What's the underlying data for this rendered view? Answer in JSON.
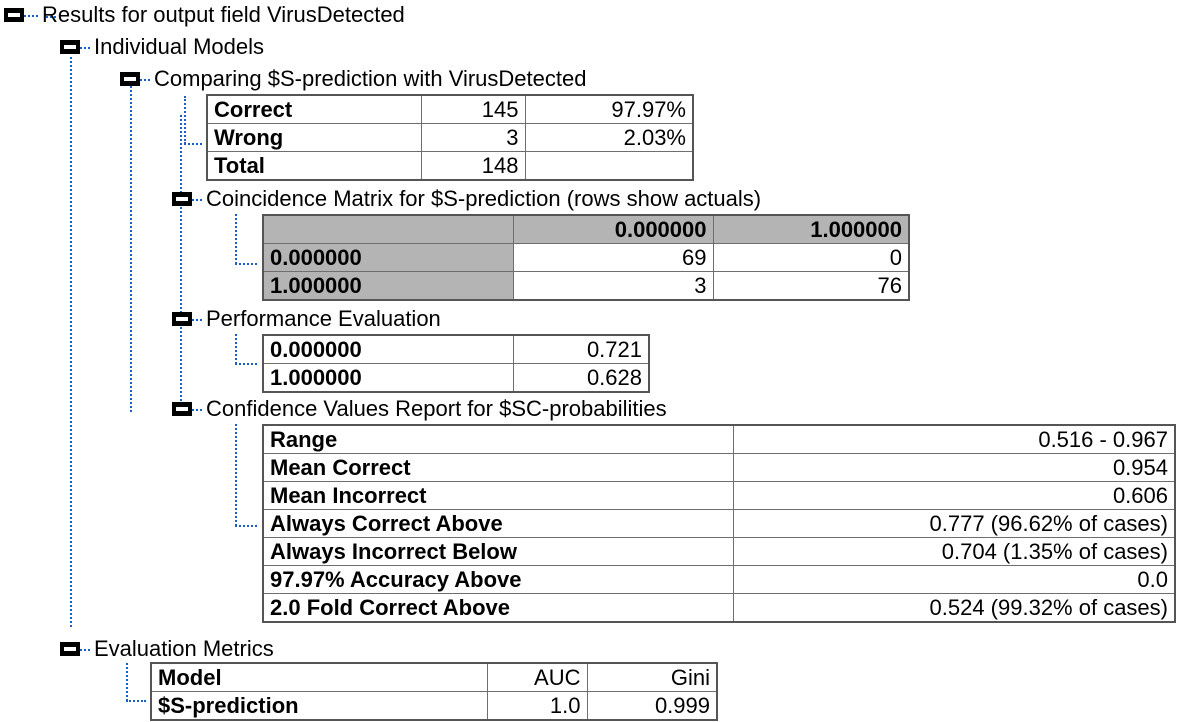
{
  "root": {
    "label": "Results for output field VirusDetected"
  },
  "individual_models": {
    "label": "Individual Models"
  },
  "comparing": {
    "label": "Comparing $S-prediction with VirusDetected",
    "rows": [
      {
        "name": "Correct",
        "count": "145",
        "pct": "97.97%"
      },
      {
        "name": "Wrong",
        "count": "3",
        "pct": "2.03%"
      },
      {
        "name": "Total",
        "count": "148",
        "pct": ""
      }
    ]
  },
  "coincidence": {
    "label": "Coincidence Matrix for $S-prediction (rows show actuals)",
    "col_headers": [
      "0.000000",
      "1.000000"
    ],
    "rows": [
      {
        "name": "0.000000",
        "values": [
          "69",
          "0"
        ]
      },
      {
        "name": "1.000000",
        "values": [
          "3",
          "76"
        ]
      }
    ]
  },
  "performance": {
    "label": "Performance Evaluation",
    "rows": [
      {
        "name": "0.000000",
        "value": "0.721"
      },
      {
        "name": "1.000000",
        "value": "0.628"
      }
    ]
  },
  "confidence": {
    "label": "Confidence Values Report for $SC-probabilities",
    "rows": [
      {
        "name": "Range",
        "value": "0.516 - 0.967"
      },
      {
        "name": "Mean Correct",
        "value": "0.954"
      },
      {
        "name": "Mean Incorrect",
        "value": "0.606"
      },
      {
        "name": "Always Correct Above",
        "value": "0.777 (96.62% of cases)"
      },
      {
        "name": "Always Incorrect Below",
        "value": "0.704 (1.35% of cases)"
      },
      {
        "name": "97.97% Accuracy Above",
        "value": "0.0"
      },
      {
        "name": "2.0 Fold Correct Above",
        "value": "0.524 (99.32% of cases)"
      }
    ]
  },
  "evaluation": {
    "label": "Evaluation Metrics",
    "headers": {
      "model": "Model",
      "auc": "AUC",
      "gini": "Gini"
    },
    "rows": [
      {
        "model": "$S-prediction",
        "auc": "1.0",
        "gini": "0.999"
      }
    ]
  },
  "colors": {
    "tree_line": "#1b5ec8",
    "header_gray": "#b4b4b4",
    "border": "#6e6e6e"
  }
}
